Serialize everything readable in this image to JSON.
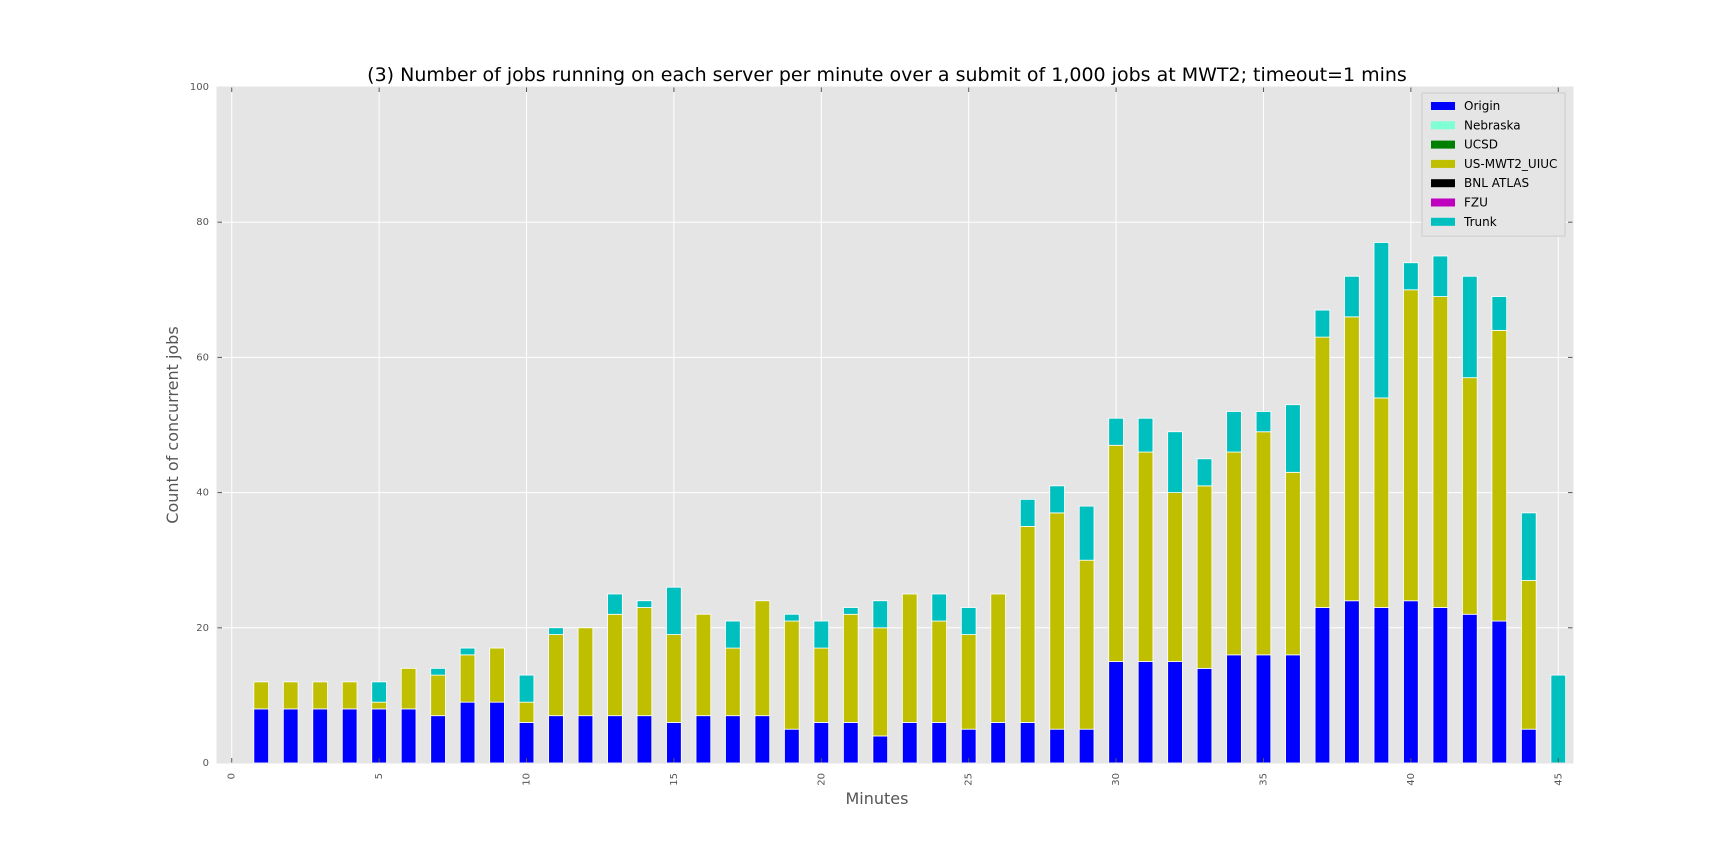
{
  "chart_data": {
    "type": "bar",
    "stacked": true,
    "title": "(3) Number of jobs running on each server per minute over a submit of 1,000 jobs at MWT2; timeout=1 mins",
    "xlabel": "Minutes",
    "ylabel": "Count of concurrent jobs",
    "ylim": [
      0,
      100
    ],
    "yticks": [
      0,
      20,
      40,
      60,
      80,
      100
    ],
    "categories": [
      0,
      1,
      2,
      3,
      4,
      5,
      6,
      7,
      8,
      9,
      10,
      11,
      12,
      13,
      14,
      15,
      16,
      17,
      18,
      19,
      20,
      21,
      22,
      23,
      24,
      25,
      26,
      27,
      28,
      29,
      30,
      31,
      32,
      33,
      34,
      35,
      36,
      37,
      38,
      39,
      40,
      41,
      42,
      43,
      44,
      45
    ],
    "xtick_labels": [
      "0",
      "5",
      "10",
      "15",
      "20",
      "25",
      "30",
      "35",
      "40",
      "45"
    ],
    "grid": true,
    "legend_position": "top-right",
    "series": [
      {
        "name": "Origin",
        "color": "#0000ff",
        "values": [
          0,
          8,
          8,
          8,
          8,
          8,
          8,
          7,
          9,
          9,
          6,
          7,
          7,
          7,
          7,
          6,
          7,
          7,
          7,
          5,
          6,
          6,
          4,
          6,
          6,
          5,
          6,
          6,
          5,
          5,
          15,
          15,
          15,
          14,
          16,
          16,
          16,
          23,
          24,
          23,
          24,
          23,
          22,
          21,
          5,
          0
        ]
      },
      {
        "name": "Nebraska",
        "color": "#7fffd4",
        "values": [
          0,
          0,
          0,
          0,
          0,
          0,
          0,
          0,
          0,
          0,
          0,
          0,
          0,
          0,
          0,
          0,
          0,
          0,
          0,
          0,
          0,
          0,
          0,
          0,
          0,
          0,
          0,
          0,
          0,
          0,
          0,
          0,
          0,
          0,
          0,
          0,
          0,
          0,
          0,
          0,
          0,
          0,
          0,
          0,
          0,
          0
        ]
      },
      {
        "name": "UCSD",
        "color": "#008000",
        "values": [
          0,
          0,
          0,
          0,
          0,
          0,
          0,
          0,
          0,
          0,
          0,
          0,
          0,
          0,
          0,
          0,
          0,
          0,
          0,
          0,
          0,
          0,
          0,
          0,
          0,
          0,
          0,
          0,
          0,
          0,
          0,
          0,
          0,
          0,
          0,
          0,
          0,
          0,
          0,
          0,
          0,
          0,
          0,
          0,
          0,
          0
        ]
      },
      {
        "name": "US-MWT2_UIUC",
        "color": "#bfbf00",
        "values": [
          0,
          4,
          4,
          4,
          4,
          1,
          6,
          6,
          7,
          8,
          3,
          12,
          13,
          15,
          16,
          13,
          15,
          10,
          17,
          16,
          11,
          16,
          16,
          19,
          15,
          14,
          19,
          29,
          32,
          25,
          32,
          31,
          25,
          27,
          30,
          33,
          27,
          40,
          42,
          31,
          46,
          46,
          35,
          43,
          22,
          0
        ]
      },
      {
        "name": "BNL ATLAS",
        "color": "#000000",
        "values": [
          0,
          0,
          0,
          0,
          0,
          0,
          0,
          0,
          0,
          0,
          0,
          0,
          0,
          0,
          0,
          0,
          0,
          0,
          0,
          0,
          0,
          0,
          0,
          0,
          0,
          0,
          0,
          0,
          0,
          0,
          0,
          0,
          0,
          0,
          0,
          0,
          0,
          0,
          0,
          0,
          0,
          0,
          0,
          0,
          0,
          0
        ]
      },
      {
        "name": "FZU",
        "color": "#bf00bf",
        "values": [
          0,
          0,
          0,
          0,
          0,
          0,
          0,
          0,
          0,
          0,
          0,
          0,
          0,
          0,
          0,
          0,
          0,
          0,
          0,
          0,
          0,
          0,
          0,
          0,
          0,
          0,
          0,
          0,
          0,
          0,
          0,
          0,
          0,
          0,
          0,
          0,
          0,
          0,
          0,
          0,
          0,
          0,
          0,
          0,
          0,
          0
        ]
      },
      {
        "name": "Trunk",
        "color": "#00bfbf",
        "values": [
          0,
          0,
          0,
          0,
          0,
          3,
          0,
          1,
          1,
          0,
          4,
          1,
          0,
          3,
          1,
          7,
          0,
          4,
          0,
          1,
          4,
          1,
          4,
          0,
          4,
          4,
          0,
          4,
          4,
          8,
          4,
          5,
          9,
          4,
          6,
          3,
          10,
          4,
          6,
          23,
          4,
          6,
          15,
          5,
          10,
          13
        ]
      }
    ],
    "colors": {
      "plot_background": "#e5e5e5",
      "grid": "#ffffff",
      "bar_edge": "#ffffff"
    }
  }
}
